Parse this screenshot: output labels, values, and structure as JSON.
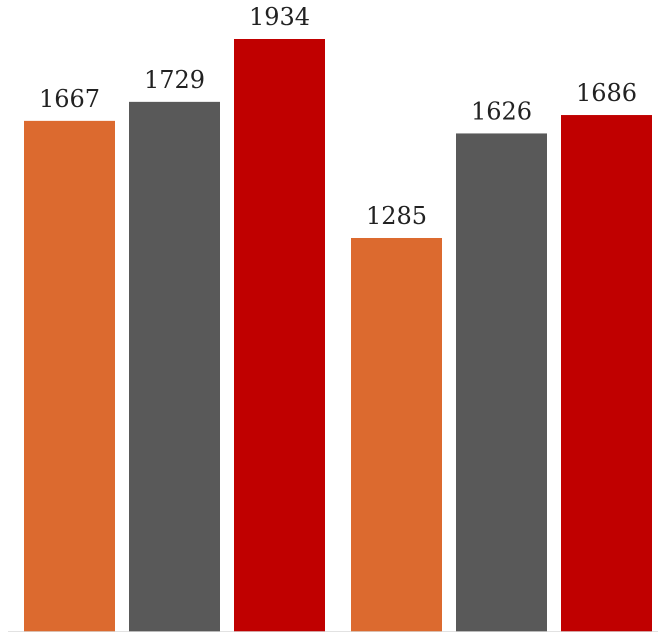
{
  "chart_data": {
    "type": "bar",
    "categories": [
      "",
      ""
    ],
    "series": [
      {
        "values": [
          1667,
          1285
        ],
        "color": "#dc6a2f"
      },
      {
        "values": [
          1729,
          1626
        ],
        "color": "#595959"
      },
      {
        "values": [
          1934,
          1686
        ],
        "color": "#c00000"
      }
    ],
    "data_labels": true,
    "title": "",
    "xlabel": "",
    "ylabel": "",
    "grid": false,
    "legend": "none",
    "ylim": [
      0,
      1934
    ]
  }
}
